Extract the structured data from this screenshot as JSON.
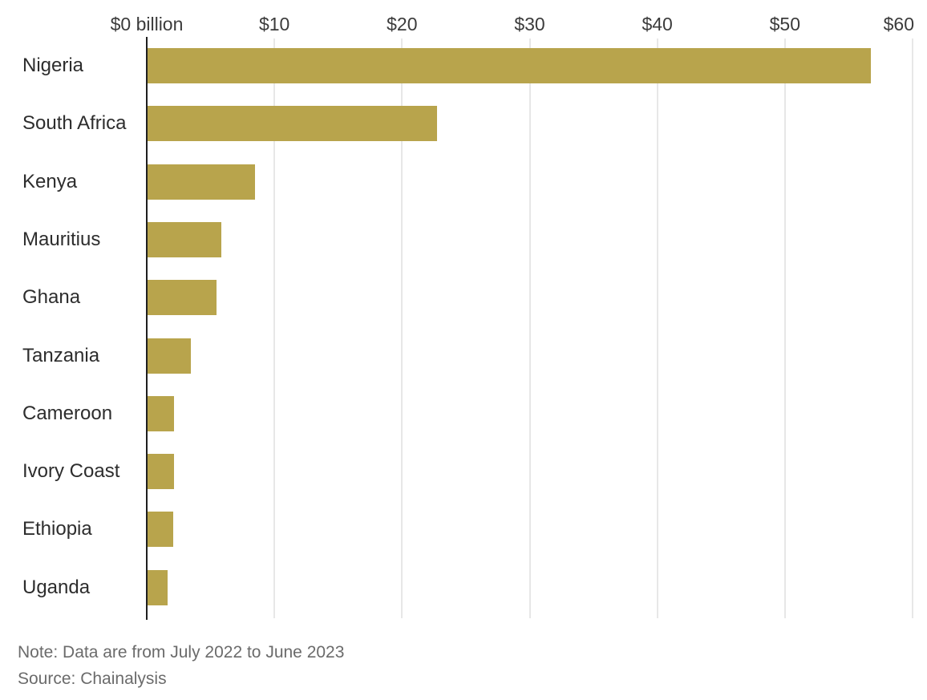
{
  "chart_data": {
    "type": "bar",
    "orientation": "horizontal",
    "unit": "USD billions",
    "categories": [
      "Nigeria",
      "South Africa",
      "Kenya",
      "Mauritius",
      "Ghana",
      "Tanzania",
      "Cameroon",
      "Ivory Coast",
      "Ethiopia",
      "Uganda"
    ],
    "values": [
      56.7,
      22.7,
      8.4,
      5.8,
      5.4,
      3.4,
      2.1,
      2.1,
      2.0,
      1.6
    ],
    "x_axis": {
      "position": "top",
      "range": [
        0,
        60
      ],
      "ticks": [
        0,
        10,
        20,
        30,
        40,
        50,
        60
      ],
      "tick_labels": [
        "$0 billion",
        "$10",
        "$20",
        "$30",
        "$40",
        "$50",
        "$60"
      ]
    },
    "grid": true,
    "legend": "none",
    "bar_color": "#b8a44c",
    "note": "Note: Data are from July 2022 to June 2023",
    "source": "Source: Chainalysis"
  },
  "colors": {
    "bar": "#b8a44c",
    "axis_line": "#1f1f1f",
    "gridline": "#e7e7e7",
    "tick_text": "#3b3b3b",
    "label_text": "#2d2d2d",
    "note_text": "#6b6b6b",
    "background": "#ffffff"
  }
}
